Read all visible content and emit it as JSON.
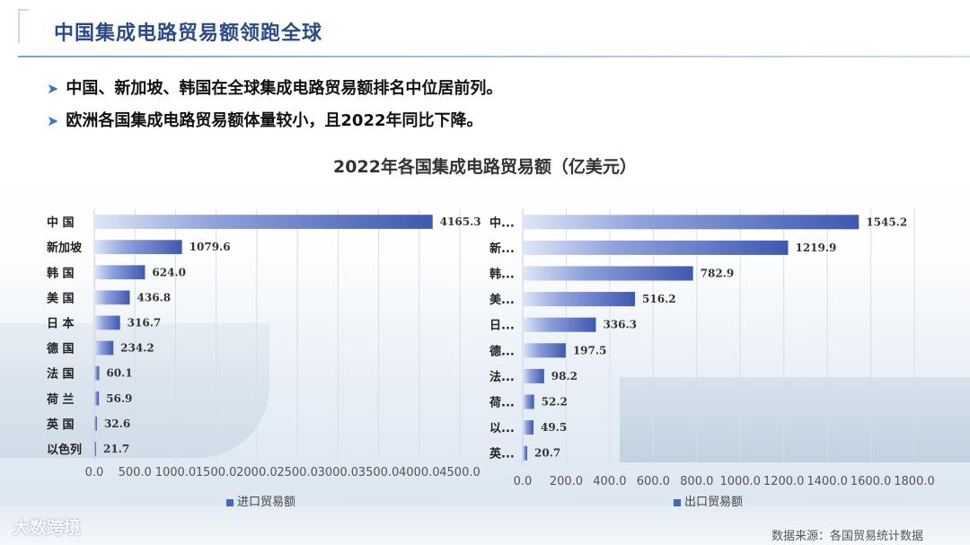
{
  "header": {
    "title": "中国集成电路贸易额领跑全球"
  },
  "bullets": [
    "中国、新加坡、韩国在全球集成电路贸易额排名中位居前列。",
    "欧洲各国集成电路贸易额体量较小，且2022年同比下降。"
  ],
  "footer": {
    "logo": "大数跨境",
    "source": "数据来源：各国贸易统计数据"
  },
  "chart_data": [
    {
      "type": "bar",
      "orientation": "horizontal",
      "title": "2022年各国集成电路贸易额（亿美元）",
      "categories": [
        "中 国",
        "新加坡",
        "韩 国",
        "美 国",
        "日 本",
        "德 国",
        "法 国",
        "荷 兰",
        "英 国",
        "以色列"
      ],
      "series": [
        {
          "name": "进口贸易额",
          "values": [
            4165.3,
            1079.6,
            624.0,
            436.8,
            316.7,
            234.2,
            60.1,
            56.9,
            32.6,
            21.7
          ]
        }
      ],
      "xlim": [
        0,
        4500
      ],
      "ticks": [
        "0.0",
        "500.0",
        "1000.0",
        "1500.0",
        "2000.0",
        "2500.0",
        "3000.0",
        "3500.0",
        "4000.0",
        "4500.0"
      ],
      "grid": true,
      "color": "#4a64b8"
    },
    {
      "type": "bar",
      "orientation": "horizontal",
      "categories": [
        "中...",
        "新...",
        "韩...",
        "美...",
        "日...",
        "德...",
        "法...",
        "荷...",
        "以...",
        "英..."
      ],
      "series": [
        {
          "name": "出口贸易额",
          "values": [
            1545.2,
            1219.9,
            782.9,
            516.2,
            336.3,
            197.5,
            98.2,
            52.2,
            49.5,
            20.7
          ]
        }
      ],
      "xlim": [
        0,
        1800
      ],
      "ticks": [
        "0.0",
        "200.0",
        "400.0",
        "600.0",
        "800.0",
        "1000.0",
        "1200.0",
        "1400.0",
        "1600.0",
        "1800.0"
      ],
      "grid": true,
      "color": "#4a64b8"
    }
  ]
}
